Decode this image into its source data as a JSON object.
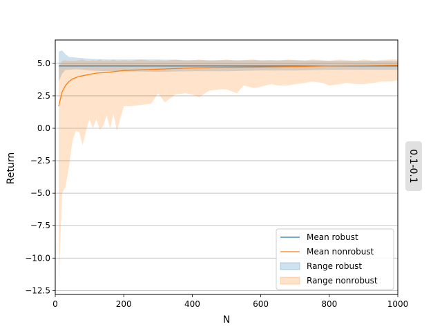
{
  "chart_data": {
    "type": "line",
    "title": "",
    "xlabel": "N",
    "ylabel": "Return",
    "side_label": "0.1-0.1",
    "xlim": [
      0,
      1000
    ],
    "ylim": [
      -12.8,
      6.8
    ],
    "x_ticks": [
      0,
      200,
      400,
      600,
      800,
      1000
    ],
    "x_tick_labels": [
      "0",
      "200",
      "400",
      "600",
      "800",
      "1000"
    ],
    "y_ticks": [
      -12.5,
      -10.0,
      -7.5,
      -5.0,
      -2.5,
      0.0,
      2.5,
      5.0
    ],
    "y_tick_labels": [
      "−12.5",
      "−10.0",
      "−7.5",
      "−5.0",
      "−2.5",
      "0.0",
      "2.5",
      "5.0"
    ],
    "grid": "horizontal",
    "legend_position": "lower-right",
    "colors": {
      "robust": "#1f77b4",
      "nonrobust": "#ff7f0e",
      "robust_fill": "#1f77b4",
      "nonrobust_fill": "#ff7f0e",
      "grid": "#b0b0b0"
    },
    "series": [
      {
        "name": "Mean robust",
        "kind": "line",
        "color": "#1f77b4",
        "x": [
          10,
          1000
        ],
        "y": [
          4.8,
          4.8
        ]
      },
      {
        "name": "Mean nonrobust",
        "kind": "line",
        "color": "#ff7f0e",
        "x": [
          10,
          20,
          30,
          40,
          50,
          60,
          70,
          80,
          100,
          120,
          150,
          200,
          250,
          300,
          350,
          400,
          500,
          600,
          700,
          800,
          900,
          1000
        ],
        "y": [
          1.7,
          2.8,
          3.3,
          3.6,
          3.8,
          3.9,
          4.0,
          4.05,
          4.15,
          4.25,
          4.3,
          4.45,
          4.5,
          4.55,
          4.6,
          4.65,
          4.7,
          4.72,
          4.75,
          4.8,
          4.82,
          4.85
        ]
      },
      {
        "name": "Range robust",
        "kind": "band",
        "color": "#1f77b4",
        "x": [
          10,
          20,
          30,
          40,
          60,
          80,
          100,
          150,
          200,
          300,
          400,
          500,
          600,
          700,
          800,
          900,
          1000
        ],
        "y_low": [
          3.6,
          4.2,
          4.5,
          4.5,
          4.55,
          4.5,
          4.45,
          4.4,
          4.4,
          4.35,
          4.4,
          4.4,
          4.45,
          4.45,
          4.5,
          4.5,
          4.5
        ],
        "y_high": [
          5.9,
          6.0,
          5.7,
          5.5,
          5.45,
          5.4,
          5.35,
          5.3,
          5.3,
          5.3,
          5.25,
          5.25,
          5.25,
          5.25,
          5.2,
          5.2,
          5.2
        ]
      },
      {
        "name": "Range nonrobust",
        "kind": "band",
        "color": "#ff7f0e",
        "x": [
          10,
          20,
          30,
          40,
          50,
          60,
          70,
          80,
          90,
          100,
          110,
          120,
          130,
          140,
          150,
          160,
          170,
          180,
          200,
          220,
          250,
          280,
          300,
          320,
          350,
          380,
          400,
          420,
          450,
          480,
          500,
          530,
          550,
          580,
          600,
          630,
          650,
          680,
          700,
          730,
          750,
          780,
          800,
          830,
          850,
          880,
          900,
          930,
          950,
          980,
          1000
        ],
        "y_low": [
          -12.1,
          -5.0,
          -4.5,
          -3.0,
          -1.0,
          -0.2,
          -0.3,
          -1.3,
          -0.2,
          0.7,
          0.0,
          0.7,
          -0.1,
          0.2,
          1.0,
          0.0,
          1.1,
          -0.2,
          1.7,
          1.7,
          1.8,
          1.9,
          2.7,
          2.0,
          2.6,
          2.7,
          2.6,
          2.4,
          2.9,
          3.0,
          3.0,
          2.7,
          3.3,
          3.1,
          3.2,
          3.4,
          3.3,
          3.3,
          3.4,
          3.5,
          3.6,
          3.5,
          3.3,
          3.4,
          3.5,
          3.4,
          3.4,
          3.5,
          3.6,
          3.6,
          3.7
        ],
        "y_high": [
          4.8,
          5.2,
          5.25,
          5.2,
          5.2,
          5.2,
          5.25,
          5.3,
          5.2,
          5.2,
          5.25,
          5.2,
          5.3,
          5.2,
          5.25,
          5.2,
          5.3,
          5.2,
          5.25,
          5.2,
          5.3,
          5.2,
          5.25,
          5.2,
          5.3,
          5.2,
          5.25,
          5.3,
          5.2,
          5.25,
          5.3,
          5.2,
          5.25,
          5.3,
          5.2,
          5.25,
          5.2,
          5.3,
          5.25,
          5.2,
          5.3,
          5.25,
          5.2,
          5.3,
          5.25,
          5.2,
          5.3,
          5.2,
          5.25,
          5.3,
          5.3
        ]
      }
    ]
  }
}
